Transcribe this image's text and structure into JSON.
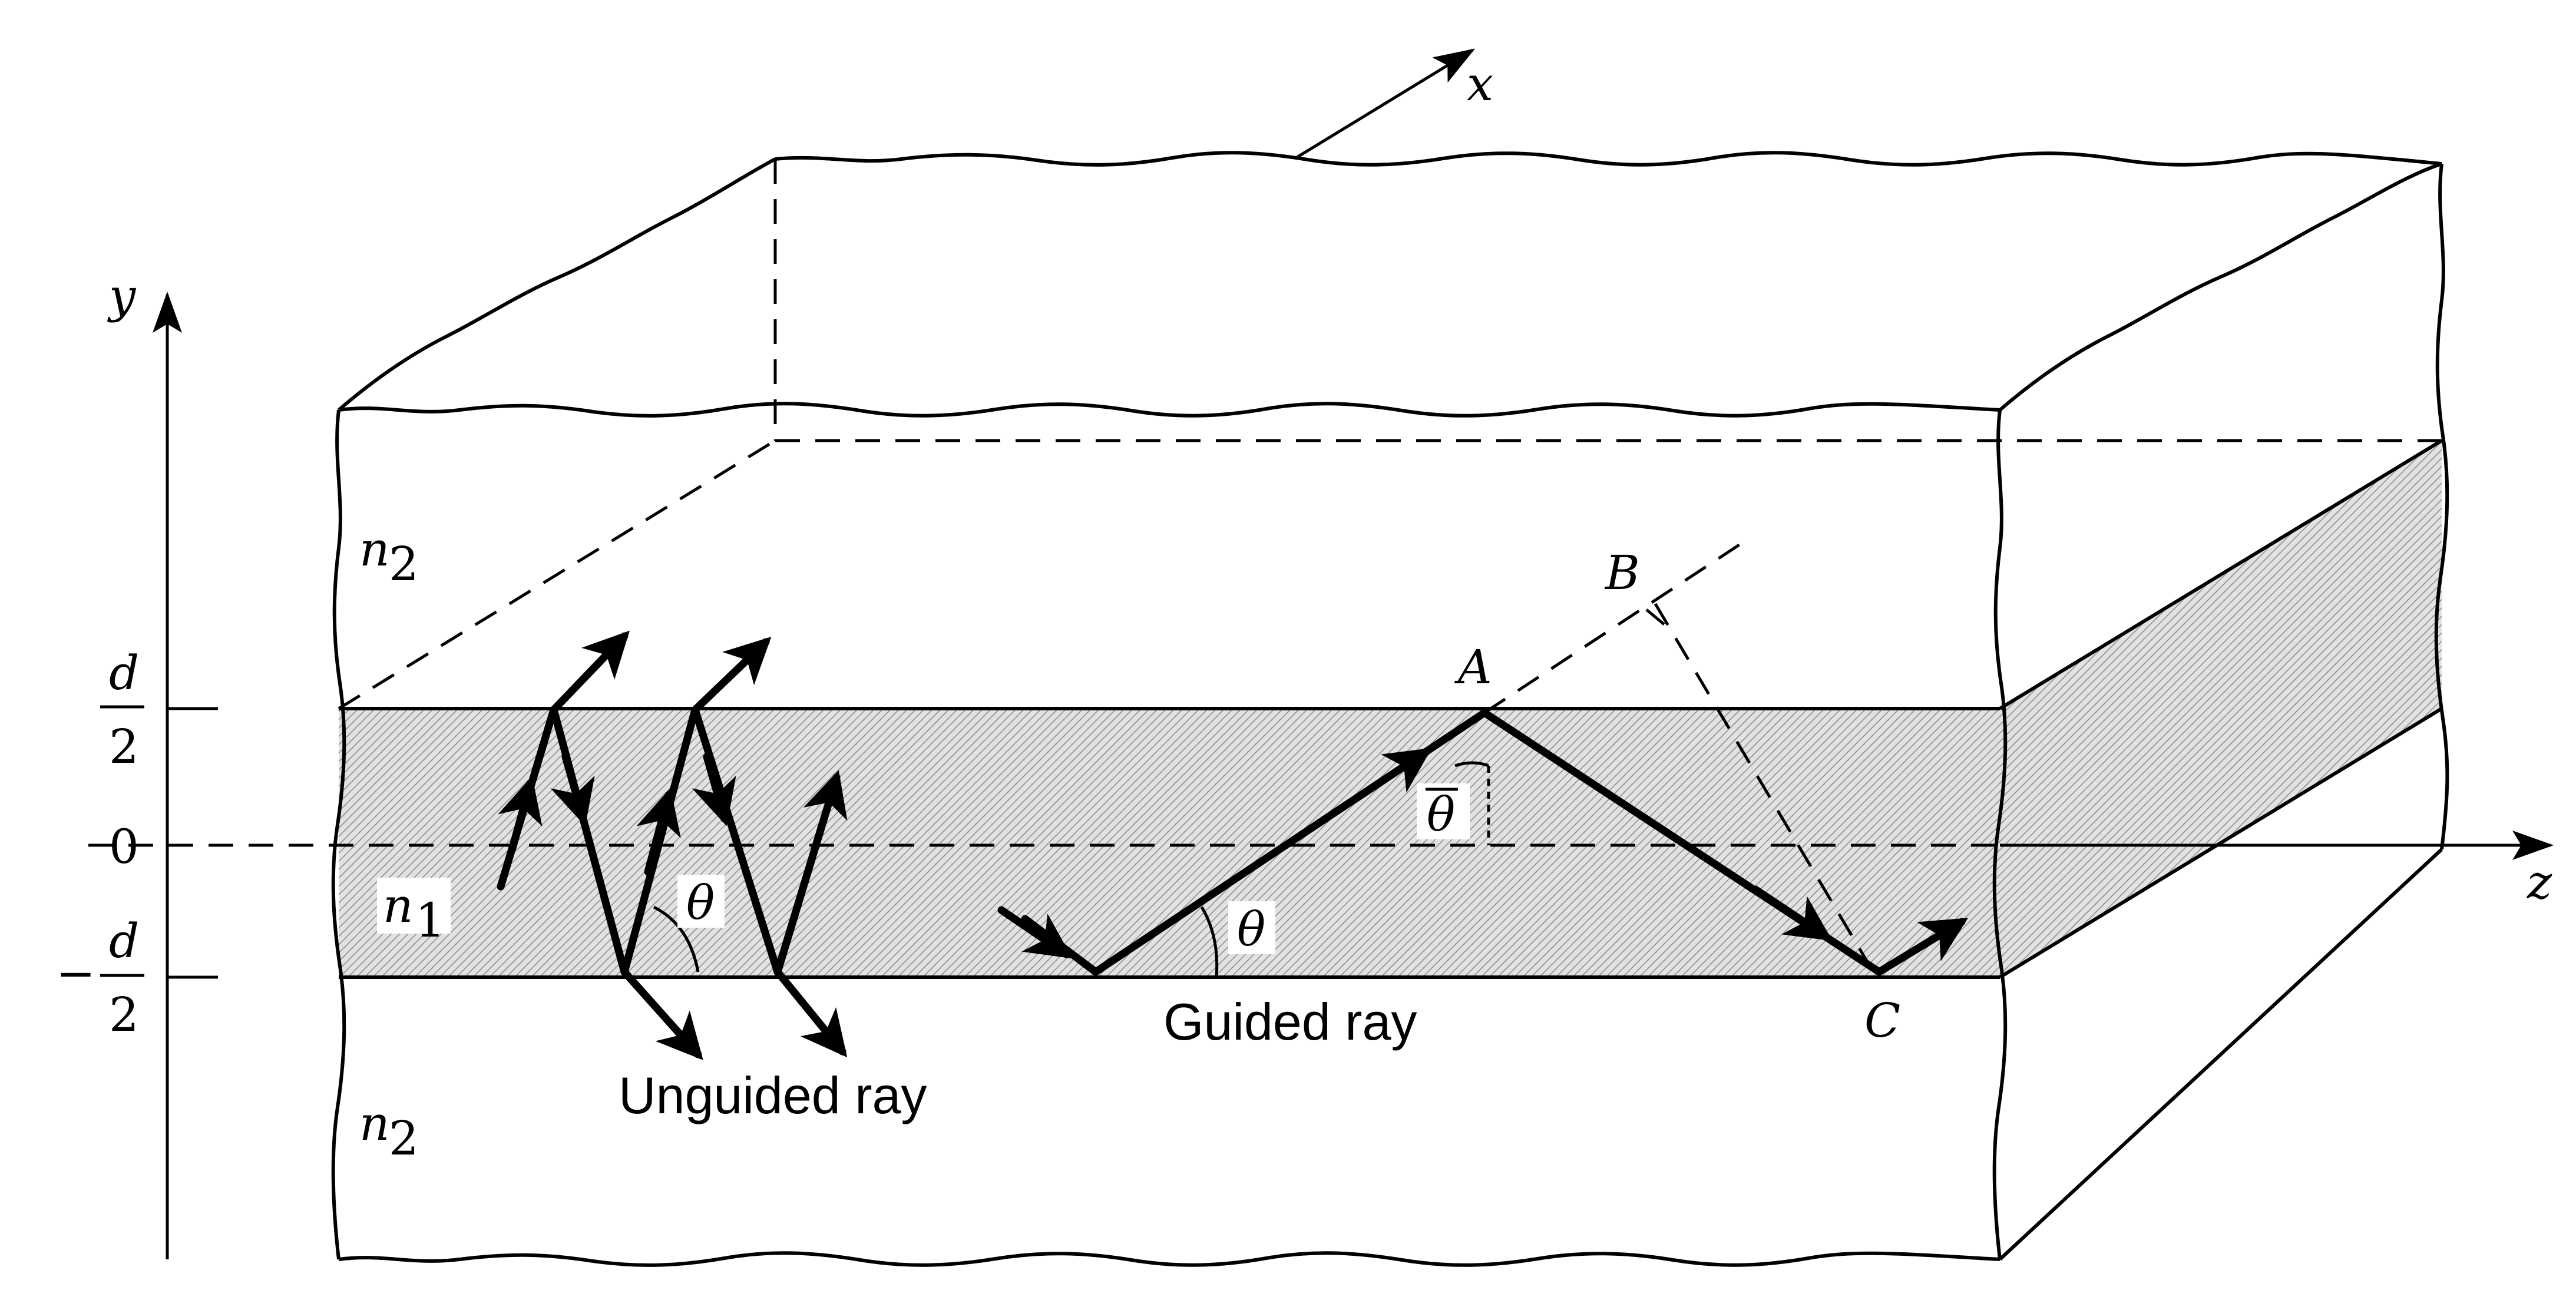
{
  "diagram": {
    "labels": {
      "axis_x": "x",
      "axis_y": "y",
      "axis_z": "z",
      "tick_top_num": "d",
      "tick_top_den": "2",
      "tick_zero": "0",
      "tick_bottom_minus": "−",
      "tick_bottom_num": "d",
      "tick_bottom_den": "2",
      "n2_top": "n",
      "n2_top_sub": "2",
      "n1": "n",
      "n1_sub": "1",
      "n2_bottom": "n",
      "n2_bottom_sub": "2",
      "point_a": "A",
      "point_b": "B",
      "point_c": "C",
      "theta_unguided": "θ",
      "theta_guided": "θ",
      "theta_bar": "θ",
      "guided_ray": "Guided ray",
      "unguided_ray": "Unguided ray"
    },
    "colors": {
      "line": "#000000",
      "core_fill": "#d4d4d4",
      "core_side_fill": "#c8c8c8",
      "background": "#ffffff"
    }
  }
}
